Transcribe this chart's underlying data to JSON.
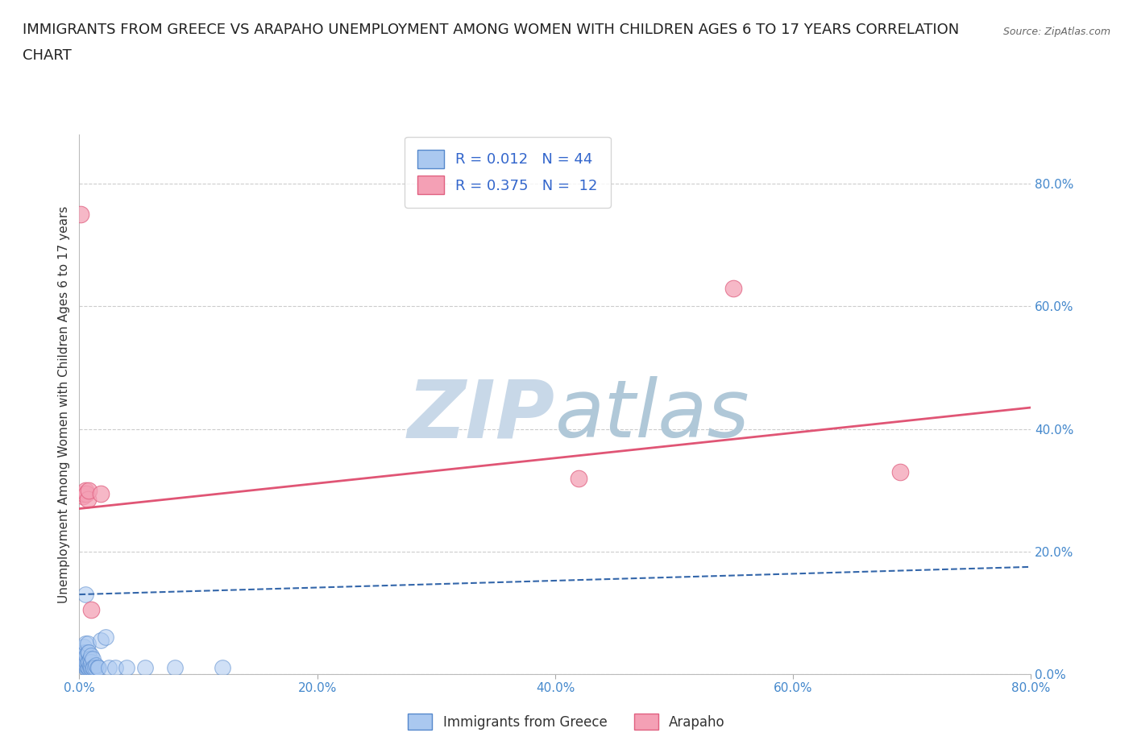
{
  "title_line1": "IMMIGRANTS FROM GREECE VS ARAPAHO UNEMPLOYMENT AMONG WOMEN WITH CHILDREN AGES 6 TO 17 YEARS CORRELATION",
  "title_line2": "CHART",
  "source_text": "Source: ZipAtlas.com",
  "ylabel": "Unemployment Among Women with Children Ages 6 to 17 years",
  "watermark": "ZIPatlas",
  "xlim": [
    0.0,
    0.8
  ],
  "ylim": [
    0.0,
    0.88
  ],
  "xticks": [
    0.0,
    0.2,
    0.4,
    0.6,
    0.8
  ],
  "yticks": [
    0.0,
    0.2,
    0.4,
    0.6,
    0.8
  ],
  "xticklabels": [
    "0.0%",
    "20.0%",
    "40.0%",
    "60.0%",
    "80.0%"
  ],
  "yticklabels": [
    "0.0%",
    "20.0%",
    "40.0%",
    "60.0%",
    "80.0%"
  ],
  "blue_scatter_x": [
    0.002,
    0.003,
    0.003,
    0.004,
    0.004,
    0.004,
    0.005,
    0.005,
    0.005,
    0.005,
    0.005,
    0.006,
    0.006,
    0.006,
    0.006,
    0.007,
    0.007,
    0.007,
    0.007,
    0.008,
    0.008,
    0.008,
    0.009,
    0.009,
    0.009,
    0.01,
    0.01,
    0.01,
    0.011,
    0.011,
    0.012,
    0.013,
    0.014,
    0.015,
    0.016,
    0.018,
    0.022,
    0.025,
    0.03,
    0.04,
    0.055,
    0.08,
    0.12,
    0.005
  ],
  "blue_scatter_y": [
    0.025,
    0.03,
    0.035,
    0.02,
    0.025,
    0.045,
    0.01,
    0.015,
    0.025,
    0.035,
    0.05,
    0.01,
    0.015,
    0.02,
    0.03,
    0.01,
    0.02,
    0.035,
    0.05,
    0.01,
    0.02,
    0.035,
    0.01,
    0.015,
    0.025,
    0.01,
    0.02,
    0.03,
    0.01,
    0.025,
    0.01,
    0.01,
    0.015,
    0.01,
    0.01,
    0.055,
    0.06,
    0.01,
    0.01,
    0.01,
    0.01,
    0.01,
    0.01,
    0.13
  ],
  "pink_scatter_x": [
    0.001,
    0.003,
    0.004,
    0.005,
    0.006,
    0.007,
    0.008,
    0.01,
    0.018,
    0.42,
    0.55,
    0.69
  ],
  "pink_scatter_y": [
    0.75,
    0.29,
    0.295,
    0.3,
    0.295,
    0.285,
    0.3,
    0.105,
    0.295,
    0.32,
    0.63,
    0.33
  ],
  "blue_line_x": [
    0.0,
    0.8
  ],
  "blue_line_y": [
    0.13,
    0.175
  ],
  "pink_line_x": [
    0.0,
    0.8
  ],
  "pink_line_y": [
    0.27,
    0.435
  ],
  "blue_scatter_color": "#aac8f0",
  "blue_scatter_edge": "#5588cc",
  "pink_scatter_color": "#f4a0b5",
  "pink_scatter_edge": "#e06080",
  "blue_line_color": "#3366aa",
  "pink_line_color": "#e05575",
  "grid_color": "#cccccc",
  "tick_color": "#4488cc",
  "background_color": "#ffffff",
  "watermark_color_zip": "#c8d8e8",
  "watermark_color_atlas": "#b0c8d8",
  "title_fontsize": 13,
  "axis_label_fontsize": 11,
  "tick_fontsize": 11,
  "legend_fontsize": 13
}
